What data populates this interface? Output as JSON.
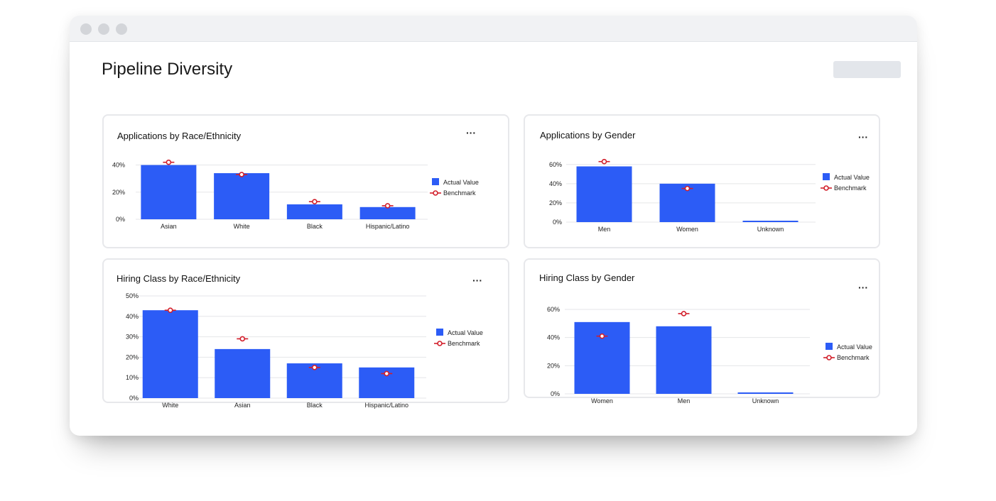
{
  "page_title": "Pipeline Diversity",
  "menu_glyph": "···",
  "colors": {
    "bar": "#2c5cf6",
    "benchmark": "#d21f2b",
    "grid": "#e5e6e8"
  },
  "legend": {
    "actual": "Actual Value",
    "benchmark": "Benchmark"
  },
  "chart_data": [
    {
      "type": "bar",
      "title": "Applications by Race/Ethnicity",
      "categories": [
        "Asian",
        "White",
        "Black",
        "Hispanic/Latino"
      ],
      "series": [
        {
          "name": "Actual Value",
          "values": [
            40,
            34,
            11,
            9
          ]
        },
        {
          "name": "Benchmark",
          "values": [
            42,
            33,
            13,
            10
          ]
        }
      ],
      "yticks": [
        "0%",
        "20%",
        "40%"
      ],
      "ylim": [
        0,
        45
      ]
    },
    {
      "type": "bar",
      "title": "Applications by Gender",
      "categories": [
        "Men",
        "Women",
        "Unknown"
      ],
      "series": [
        {
          "name": "Actual Value",
          "values": [
            58,
            40,
            1
          ]
        },
        {
          "name": "Benchmark",
          "values": [
            63,
            35,
            null
          ]
        }
      ],
      "yticks": [
        "0%",
        "20%",
        "40%",
        "60%"
      ],
      "ylim": [
        0,
        65
      ]
    },
    {
      "type": "bar",
      "title": "Hiring Class by Race/Ethnicity",
      "categories": [
        "White",
        "Asian",
        "Black",
        "Hispanic/Latino"
      ],
      "series": [
        {
          "name": "Actual Value",
          "values": [
            43,
            24,
            17,
            15
          ]
        },
        {
          "name": "Benchmark",
          "values": [
            43,
            29,
            15,
            12
          ]
        }
      ],
      "yticks": [
        "0%",
        "10%",
        "20%",
        "30%",
        "40%",
        "50%"
      ],
      "ylim": [
        0,
        50
      ]
    },
    {
      "type": "bar",
      "title": "Hiring Class by Gender",
      "categories": [
        "Women",
        "Men",
        "Unknown"
      ],
      "series": [
        {
          "name": "Actual Value",
          "values": [
            51,
            48,
            1
          ]
        },
        {
          "name": "Benchmark",
          "values": [
            41,
            57,
            null
          ]
        }
      ],
      "yticks": [
        "0%",
        "20%",
        "40%",
        "60%"
      ],
      "ylim": [
        0,
        60
      ]
    }
  ]
}
